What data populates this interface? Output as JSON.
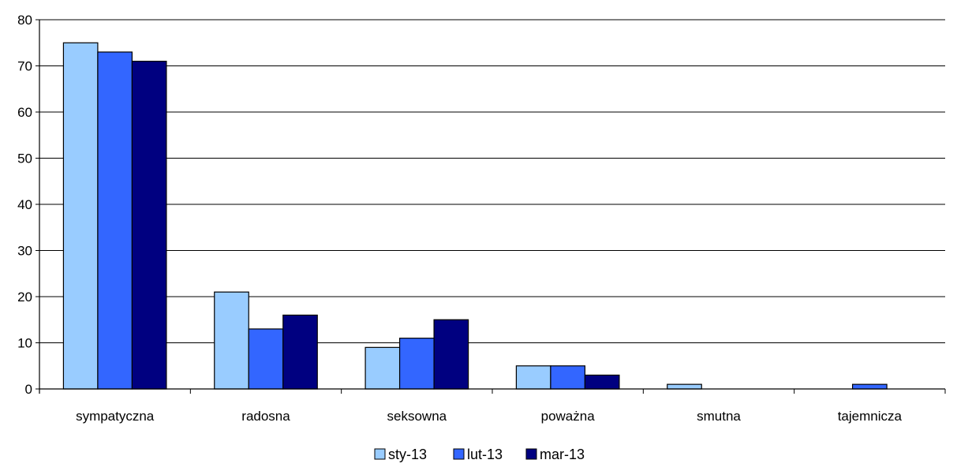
{
  "chart_data": {
    "type": "bar",
    "title": "",
    "xlabel": "",
    "ylabel": "",
    "categories": [
      "sympatyczna",
      "radosna",
      "seksowna",
      "poważna",
      "smutna",
      "tajemnicza"
    ],
    "series": [
      {
        "name": "sty-13",
        "color": "#99ccff",
        "values": [
          75,
          21,
          9,
          5,
          1,
          0
        ]
      },
      {
        "name": "lut-13",
        "color": "#3366ff",
        "values": [
          73,
          13,
          11,
          5,
          0,
          1
        ]
      },
      {
        "name": "mar-13",
        "color": "#000080",
        "values": [
          71,
          16,
          15,
          3,
          0,
          0
        ]
      }
    ],
    "ylim": [
      0,
      80
    ],
    "yticks": [
      "0",
      "10",
      "20",
      "30",
      "40",
      "50",
      "60",
      "70",
      "80"
    ],
    "grid": true,
    "legend_position": "bottom"
  }
}
